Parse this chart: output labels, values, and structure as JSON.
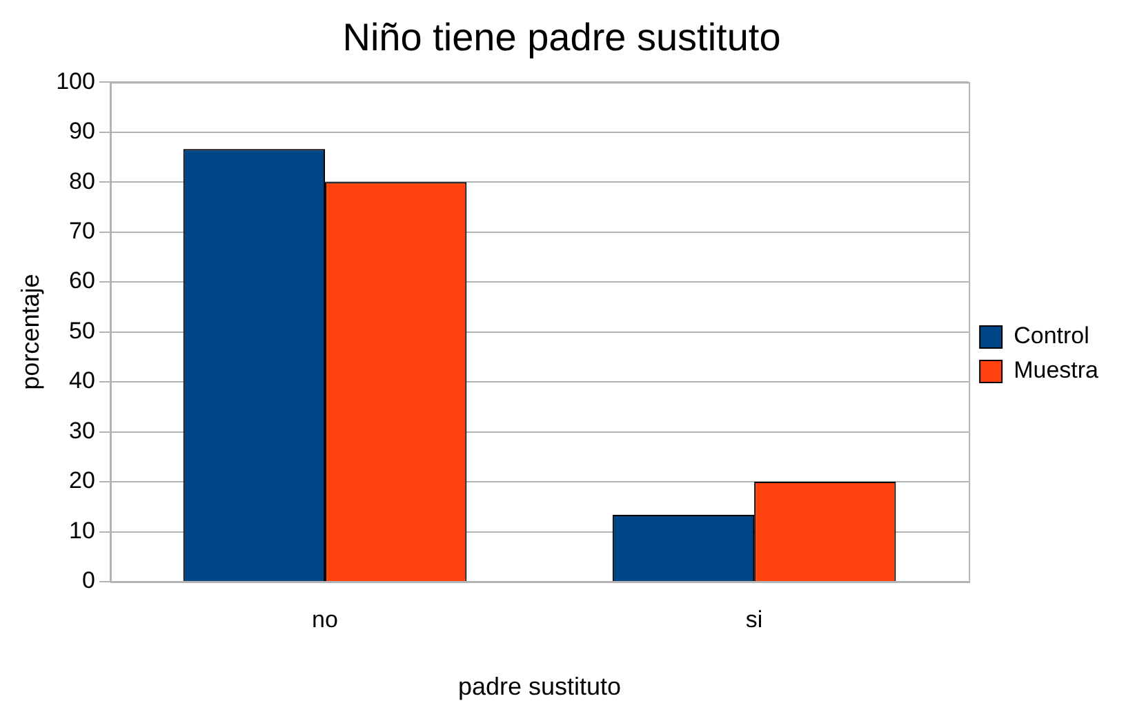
{
  "chart_data": {
    "type": "bar",
    "title": "Niño tiene padre sustituto",
    "xlabel": "padre sustituto",
    "ylabel": "porcentaje",
    "categories": [
      "no",
      "si"
    ],
    "series": [
      {
        "name": "Control",
        "color": "#004586",
        "values": [
          86.6,
          13.4
        ]
      },
      {
        "name": "Muestra",
        "color": "#ff420e",
        "values": [
          80,
          20
        ]
      }
    ],
    "ylim": [
      0,
      100
    ],
    "yticks": [
      0,
      10,
      20,
      30,
      40,
      50,
      60,
      70,
      80,
      90,
      100
    ],
    "grid": "y",
    "legend": "right"
  }
}
